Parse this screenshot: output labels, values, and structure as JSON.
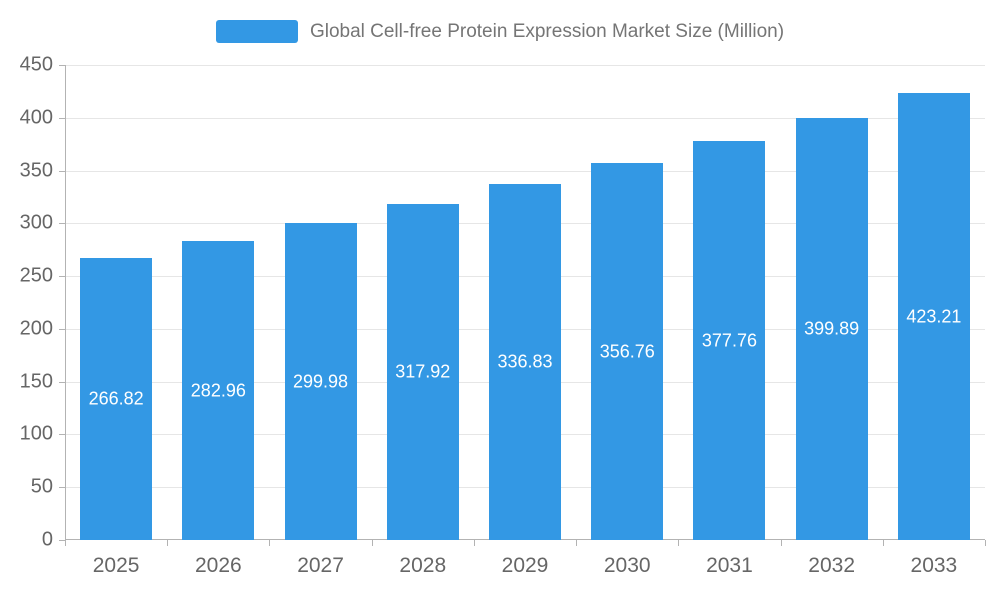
{
  "legend": {
    "label": "Global Cell-free Protein Expression Market Size (Million)"
  },
  "colors": {
    "bar": "#3398E4",
    "bar_label": "#ffffff",
    "grid": "#e6e6e6",
    "axis": "#b3b3b3",
    "tick_text": "#666666",
    "title_text": "#757575"
  },
  "chart_data": {
    "type": "bar",
    "title": "Global Cell-free Protein Expression Market Size (Million)",
    "categories": [
      "2025",
      "2026",
      "2027",
      "2028",
      "2029",
      "2030",
      "2031",
      "2032",
      "2033"
    ],
    "values": [
      266.82,
      282.96,
      299.98,
      317.92,
      336.83,
      356.76,
      377.76,
      399.89,
      423.21
    ],
    "xlabel": "",
    "ylabel": "",
    "ylim": [
      0,
      450
    ],
    "ytick_step": 50,
    "grid": true,
    "legend_position": "top",
    "value_label_position": "inside-middle"
  }
}
